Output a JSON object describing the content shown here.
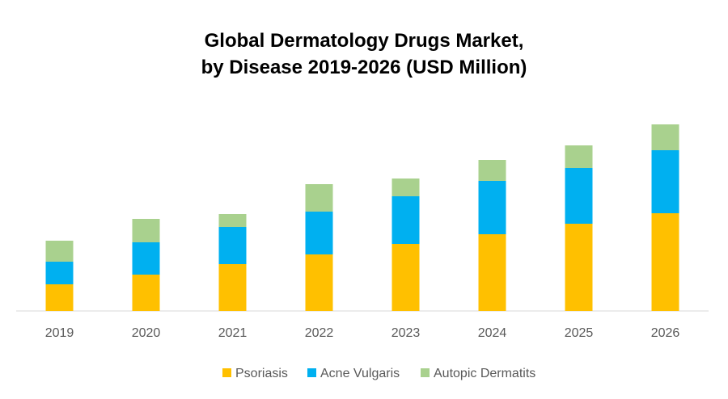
{
  "chart_data": {
    "type": "bar",
    "stacked": true,
    "title_line1": "Global Dermatology Drugs Market,",
    "title_line2": "by Disease 2019-2026 (USD Million)",
    "xlabel": "",
    "ylabel": "",
    "y_axis_shown": false,
    "grid": false,
    "legend_position": "bottom",
    "ylim": [
      0,
      240
    ],
    "categories": [
      "2019",
      "2020",
      "2021",
      "2022",
      "2023",
      "2024",
      "2025",
      "2026"
    ],
    "series": [
      {
        "name": "Psoriasis",
        "color": "#FFC000",
        "values": [
          33,
          45,
          58,
          70,
          83,
          95,
          108,
          121
        ]
      },
      {
        "name": "Acne Vulgaris",
        "color": "#00B0F0",
        "values": [
          28,
          40,
          46,
          53,
          59,
          66,
          69,
          78
        ]
      },
      {
        "name": "Autopic Dermatits",
        "color": "#A9D18E",
        "values": [
          26,
          29,
          16,
          34,
          22,
          26,
          28,
          32
        ]
      }
    ]
  }
}
